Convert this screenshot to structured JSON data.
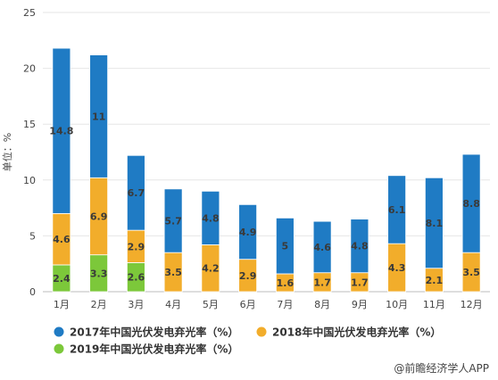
{
  "chart_data": {
    "type": "bar",
    "stacked": true,
    "categories": [
      "1月",
      "2月",
      "3月",
      "4月",
      "5月",
      "6月",
      "7月",
      "8月",
      "9月",
      "10月",
      "11月",
      "12月"
    ],
    "series": [
      {
        "name": "2019年中国光伏发电弃光率（%）",
        "color": "#7cc83a",
        "values": [
          2.4,
          3.3,
          2.6,
          null,
          null,
          null,
          null,
          null,
          null,
          null,
          null,
          null
        ]
      },
      {
        "name": "2018年中国光伏发电弃光率（%）",
        "color": "#f2ad2b",
        "values": [
          4.6,
          6.9,
          2.9,
          3.5,
          4.2,
          2.9,
          1.6,
          1.7,
          1.7,
          4.3,
          2.1,
          3.5
        ]
      },
      {
        "name": "2017年中国光伏发电弃光率（%）",
        "color": "#1f7bc4",
        "values": [
          14.8,
          11,
          6.7,
          5.7,
          4.8,
          4.9,
          5,
          4.6,
          4.8,
          6.1,
          8.1,
          8.8
        ]
      }
    ],
    "ylabel": "单位：%",
    "ylim": [
      0,
      25
    ],
    "yticks": [
      0,
      5,
      10,
      15,
      20,
      25
    ],
    "grid": true,
    "legend": "bottom"
  },
  "watermark": "前瞻产业研究院",
  "source": "@前瞻经济学人APP"
}
